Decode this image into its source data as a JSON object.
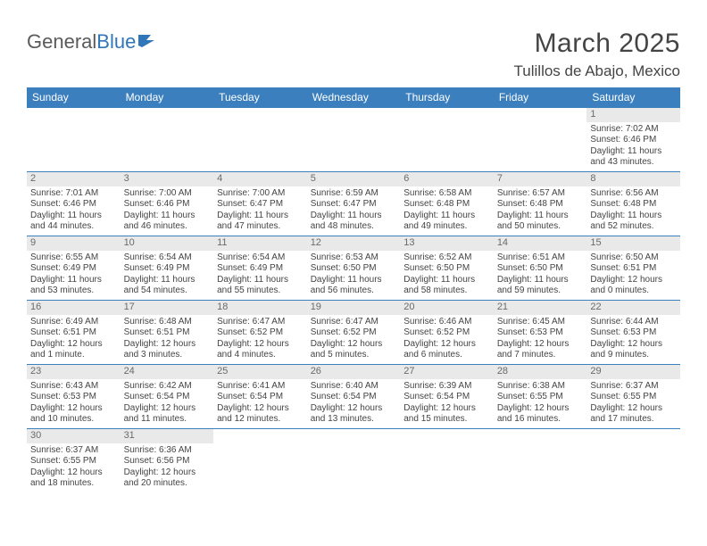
{
  "brand": {
    "part1": "General",
    "part2": "Blue"
  },
  "title": "March 2025",
  "location": "Tulillos de Abajo, Mexico",
  "header_bg": "#3b7fbf",
  "rule_color": "#3b7fbf",
  "day_bg": "#e9e9e9",
  "text_color": "#444444",
  "weekdays": [
    "Sunday",
    "Monday",
    "Tuesday",
    "Wednesday",
    "Thursday",
    "Friday",
    "Saturday"
  ],
  "weeks": [
    [
      null,
      null,
      null,
      null,
      null,
      null,
      {
        "d": "1",
        "sr": "Sunrise: 7:02 AM",
        "ss": "Sunset: 6:46 PM",
        "dl1": "Daylight: 11 hours",
        "dl2": "and 43 minutes."
      }
    ],
    [
      {
        "d": "2",
        "sr": "Sunrise: 7:01 AM",
        "ss": "Sunset: 6:46 PM",
        "dl1": "Daylight: 11 hours",
        "dl2": "and 44 minutes."
      },
      {
        "d": "3",
        "sr": "Sunrise: 7:00 AM",
        "ss": "Sunset: 6:46 PM",
        "dl1": "Daylight: 11 hours",
        "dl2": "and 46 minutes."
      },
      {
        "d": "4",
        "sr": "Sunrise: 7:00 AM",
        "ss": "Sunset: 6:47 PM",
        "dl1": "Daylight: 11 hours",
        "dl2": "and 47 minutes."
      },
      {
        "d": "5",
        "sr": "Sunrise: 6:59 AM",
        "ss": "Sunset: 6:47 PM",
        "dl1": "Daylight: 11 hours",
        "dl2": "and 48 minutes."
      },
      {
        "d": "6",
        "sr": "Sunrise: 6:58 AM",
        "ss": "Sunset: 6:48 PM",
        "dl1": "Daylight: 11 hours",
        "dl2": "and 49 minutes."
      },
      {
        "d": "7",
        "sr": "Sunrise: 6:57 AM",
        "ss": "Sunset: 6:48 PM",
        "dl1": "Daylight: 11 hours",
        "dl2": "and 50 minutes."
      },
      {
        "d": "8",
        "sr": "Sunrise: 6:56 AM",
        "ss": "Sunset: 6:48 PM",
        "dl1": "Daylight: 11 hours",
        "dl2": "and 52 minutes."
      }
    ],
    [
      {
        "d": "9",
        "sr": "Sunrise: 6:55 AM",
        "ss": "Sunset: 6:49 PM",
        "dl1": "Daylight: 11 hours",
        "dl2": "and 53 minutes."
      },
      {
        "d": "10",
        "sr": "Sunrise: 6:54 AM",
        "ss": "Sunset: 6:49 PM",
        "dl1": "Daylight: 11 hours",
        "dl2": "and 54 minutes."
      },
      {
        "d": "11",
        "sr": "Sunrise: 6:54 AM",
        "ss": "Sunset: 6:49 PM",
        "dl1": "Daylight: 11 hours",
        "dl2": "and 55 minutes."
      },
      {
        "d": "12",
        "sr": "Sunrise: 6:53 AM",
        "ss": "Sunset: 6:50 PM",
        "dl1": "Daylight: 11 hours",
        "dl2": "and 56 minutes."
      },
      {
        "d": "13",
        "sr": "Sunrise: 6:52 AM",
        "ss": "Sunset: 6:50 PM",
        "dl1": "Daylight: 11 hours",
        "dl2": "and 58 minutes."
      },
      {
        "d": "14",
        "sr": "Sunrise: 6:51 AM",
        "ss": "Sunset: 6:50 PM",
        "dl1": "Daylight: 11 hours",
        "dl2": "and 59 minutes."
      },
      {
        "d": "15",
        "sr": "Sunrise: 6:50 AM",
        "ss": "Sunset: 6:51 PM",
        "dl1": "Daylight: 12 hours",
        "dl2": "and 0 minutes."
      }
    ],
    [
      {
        "d": "16",
        "sr": "Sunrise: 6:49 AM",
        "ss": "Sunset: 6:51 PM",
        "dl1": "Daylight: 12 hours",
        "dl2": "and 1 minute."
      },
      {
        "d": "17",
        "sr": "Sunrise: 6:48 AM",
        "ss": "Sunset: 6:51 PM",
        "dl1": "Daylight: 12 hours",
        "dl2": "and 3 minutes."
      },
      {
        "d": "18",
        "sr": "Sunrise: 6:47 AM",
        "ss": "Sunset: 6:52 PM",
        "dl1": "Daylight: 12 hours",
        "dl2": "and 4 minutes."
      },
      {
        "d": "19",
        "sr": "Sunrise: 6:47 AM",
        "ss": "Sunset: 6:52 PM",
        "dl1": "Daylight: 12 hours",
        "dl2": "and 5 minutes."
      },
      {
        "d": "20",
        "sr": "Sunrise: 6:46 AM",
        "ss": "Sunset: 6:52 PM",
        "dl1": "Daylight: 12 hours",
        "dl2": "and 6 minutes."
      },
      {
        "d": "21",
        "sr": "Sunrise: 6:45 AM",
        "ss": "Sunset: 6:53 PM",
        "dl1": "Daylight: 12 hours",
        "dl2": "and 7 minutes."
      },
      {
        "d": "22",
        "sr": "Sunrise: 6:44 AM",
        "ss": "Sunset: 6:53 PM",
        "dl1": "Daylight: 12 hours",
        "dl2": "and 9 minutes."
      }
    ],
    [
      {
        "d": "23",
        "sr": "Sunrise: 6:43 AM",
        "ss": "Sunset: 6:53 PM",
        "dl1": "Daylight: 12 hours",
        "dl2": "and 10 minutes."
      },
      {
        "d": "24",
        "sr": "Sunrise: 6:42 AM",
        "ss": "Sunset: 6:54 PM",
        "dl1": "Daylight: 12 hours",
        "dl2": "and 11 minutes."
      },
      {
        "d": "25",
        "sr": "Sunrise: 6:41 AM",
        "ss": "Sunset: 6:54 PM",
        "dl1": "Daylight: 12 hours",
        "dl2": "and 12 minutes."
      },
      {
        "d": "26",
        "sr": "Sunrise: 6:40 AM",
        "ss": "Sunset: 6:54 PM",
        "dl1": "Daylight: 12 hours",
        "dl2": "and 13 minutes."
      },
      {
        "d": "27",
        "sr": "Sunrise: 6:39 AM",
        "ss": "Sunset: 6:54 PM",
        "dl1": "Daylight: 12 hours",
        "dl2": "and 15 minutes."
      },
      {
        "d": "28",
        "sr": "Sunrise: 6:38 AM",
        "ss": "Sunset: 6:55 PM",
        "dl1": "Daylight: 12 hours",
        "dl2": "and 16 minutes."
      },
      {
        "d": "29",
        "sr": "Sunrise: 6:37 AM",
        "ss": "Sunset: 6:55 PM",
        "dl1": "Daylight: 12 hours",
        "dl2": "and 17 minutes."
      }
    ],
    [
      {
        "d": "30",
        "sr": "Sunrise: 6:37 AM",
        "ss": "Sunset: 6:55 PM",
        "dl1": "Daylight: 12 hours",
        "dl2": "and 18 minutes."
      },
      {
        "d": "31",
        "sr": "Sunrise: 6:36 AM",
        "ss": "Sunset: 6:56 PM",
        "dl1": "Daylight: 12 hours",
        "dl2": "and 20 minutes."
      },
      null,
      null,
      null,
      null,
      null
    ]
  ]
}
